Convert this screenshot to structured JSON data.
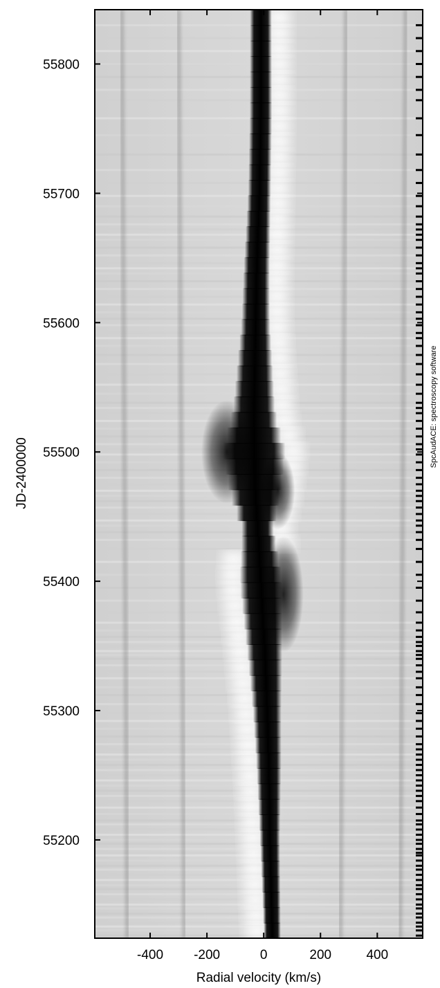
{
  "chart_data": {
    "type": "heatmap",
    "title": "",
    "xlabel": "Radial velocity (km/s)",
    "ylabel": "JD-2400000",
    "xlim": [
      -595,
      560
    ],
    "ylim": [
      55124,
      55842
    ],
    "xticks": [
      -400,
      -200,
      0,
      200,
      400
    ],
    "xtick_labels": [
      "-400",
      "-200",
      "0",
      "200",
      "400"
    ],
    "yticks": [
      55200,
      55300,
      55400,
      55500,
      55600,
      55700,
      55800
    ],
    "ytick_labels": [
      "55200",
      "55300",
      "55400",
      "55500",
      "55600",
      "55700",
      "55800"
    ],
    "colormap": "grayscale (white = low, black = high intensity)",
    "grid": false,
    "credit": "SpcAudACE: spectroscopy software",
    "colors": {
      "background": "#d4d4d4",
      "emission": "#000000",
      "absorption": "#ffffff"
    },
    "central_feature_center_kms": [
      [
        55130,
        30
      ],
      [
        55200,
        22
      ],
      [
        55260,
        18
      ],
      [
        55300,
        12
      ],
      [
        55340,
        5
      ],
      [
        55380,
        -5
      ],
      [
        55420,
        -15
      ],
      [
        55470,
        -30
      ],
      [
        55520,
        -35
      ],
      [
        55580,
        -30
      ],
      [
        55640,
        -25
      ],
      [
        55700,
        -15
      ],
      [
        55760,
        -10
      ],
      [
        55842,
        -10
      ]
    ],
    "central_feature_halfwidth_kms": [
      [
        55130,
        30
      ],
      [
        55200,
        35
      ],
      [
        55300,
        50
      ],
      [
        55360,
        65
      ],
      [
        55400,
        75
      ],
      [
        55440,
        55
      ],
      [
        55470,
        90
      ],
      [
        55500,
        110
      ],
      [
        55530,
        75
      ],
      [
        55600,
        50
      ],
      [
        55700,
        40
      ],
      [
        55842,
        38
      ]
    ],
    "satellite_lines_kms": [
      -480,
      -280,
      270,
      480
    ],
    "observation_dates": [
      55126,
      55130,
      55133,
      55136,
      55140,
      55143,
      55147,
      55150,
      55154,
      55158,
      55162,
      55165,
      55169,
      55173,
      55177,
      55180,
      55184,
      55188,
      55190,
      55193,
      55197,
      55200,
      55204,
      55208,
      55212,
      55215,
      55220,
      55225,
      55230,
      55234,
      55238,
      55242,
      55246,
      55250,
      55254,
      55258,
      55262,
      55266,
      55270,
      55274,
      55280,
      55286,
      55292,
      55298,
      55305,
      55312,
      55318,
      55325,
      55330,
      55335,
      55340,
      55343,
      55346,
      55350,
      55353,
      55357,
      55362,
      55368,
      55376,
      55385,
      55395,
      55405,
      55415,
      55425,
      55432,
      55438,
      55443,
      55447,
      55452,
      55457,
      55462,
      55466,
      55470,
      55475,
      55480,
      55486,
      55492,
      55498,
      55502,
      55506,
      55512,
      55518,
      55524,
      55530,
      55534,
      55538,
      55545,
      55552,
      55560,
      55568,
      55575,
      55582,
      55588,
      55592,
      55598,
      55603,
      55608,
      55614,
      55620,
      55626,
      55632,
      55638,
      55642,
      55646,
      55652,
      55658,
      55664,
      55668,
      55672,
      55676,
      55682,
      55690,
      55698,
      55708,
      55718,
      55730,
      55745,
      55758,
      55772,
      55780,
      55790,
      55800,
      55810,
      55820,
      55830
    ]
  }
}
